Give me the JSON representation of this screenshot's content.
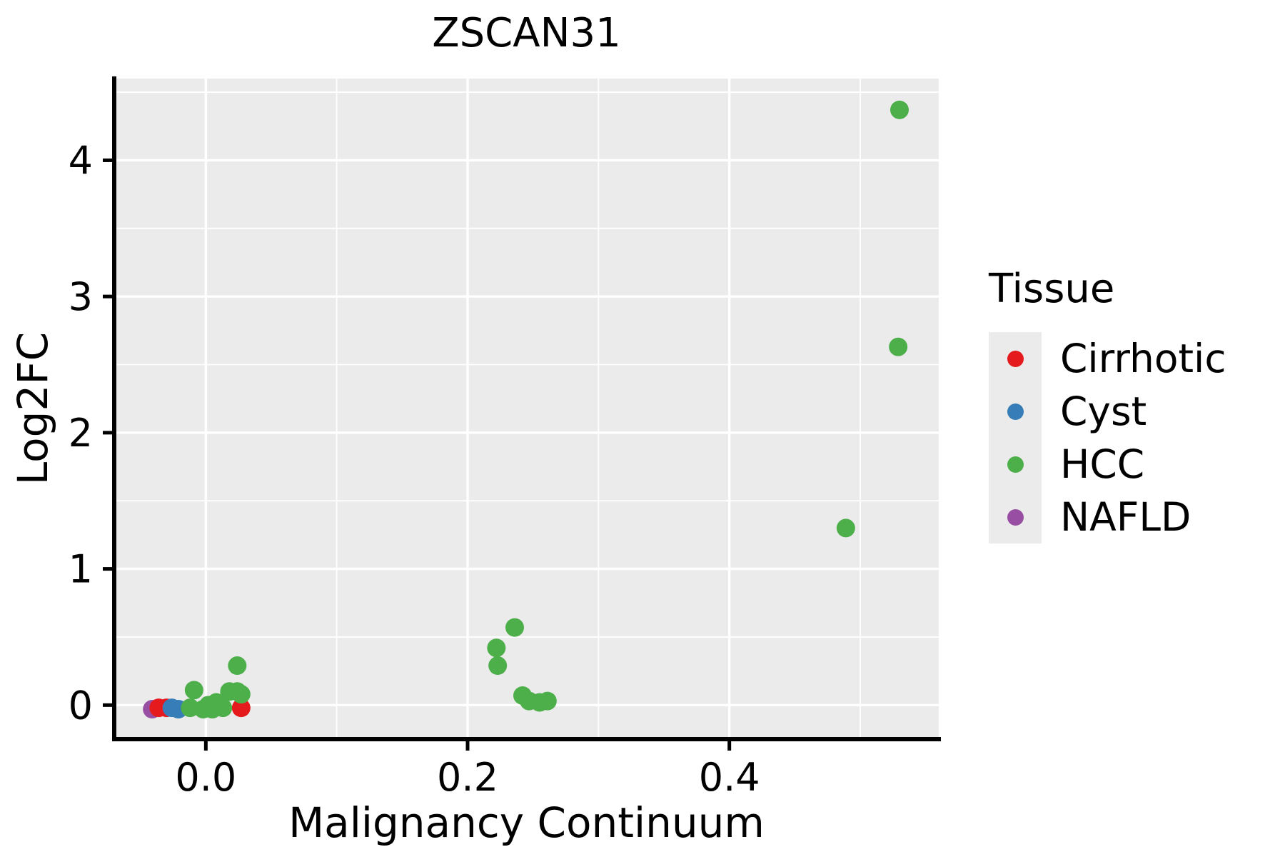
{
  "chart_data": {
    "type": "scatter",
    "title": "ZSCAN31",
    "xlabel": "Malignancy Continuum",
    "ylabel": "Log2FC",
    "xlim": [
      -0.07,
      0.56
    ],
    "ylim": [
      -0.25,
      4.6
    ],
    "xticks": [
      0.0,
      0.2,
      0.4
    ],
    "xtick_labels": [
      "0.0",
      "0.2",
      "0.4"
    ],
    "yticks": [
      0,
      1,
      2,
      3,
      4
    ],
    "ytick_labels": [
      "0",
      "1",
      "2",
      "3",
      "4"
    ],
    "x_minor_ticks": [
      0.1,
      0.3,
      0.5
    ],
    "y_minor_ticks": [
      0.5,
      1.5,
      2.5,
      3.5,
      4.5
    ],
    "grid": true,
    "panel_bg": "#ebebeb",
    "grid_color": "#ffffff",
    "axis_color": "#000000",
    "point_radius": 13,
    "draw_order": [
      3,
      0,
      1,
      2
    ],
    "legend": {
      "title": "Tissue",
      "position": "right",
      "key_bg": "#ebebeb"
    },
    "series": [
      {
        "name": "Cirrhotic",
        "color": "#e41a1c",
        "points": [
          [
            -0.036,
            -0.02
          ],
          [
            -0.03,
            -0.02
          ],
          [
            0.027,
            -0.02
          ]
        ]
      },
      {
        "name": "Cyst",
        "color": "#377eb8",
        "points": [
          [
            -0.026,
            -0.02
          ],
          [
            -0.021,
            -0.03
          ]
        ]
      },
      {
        "name": "HCC",
        "color": "#4daf4a",
        "points": [
          [
            0.53,
            4.37
          ],
          [
            0.529,
            2.63
          ],
          [
            0.489,
            1.3
          ],
          [
            0.236,
            0.57
          ],
          [
            0.222,
            0.42
          ],
          [
            0.223,
            0.29
          ],
          [
            0.242,
            0.07
          ],
          [
            0.247,
            0.03
          ],
          [
            0.255,
            0.02
          ],
          [
            0.261,
            0.03
          ],
          [
            0.024,
            0.29
          ],
          [
            -0.009,
            0.11
          ],
          [
            0.018,
            0.1
          ],
          [
            0.024,
            0.1
          ],
          [
            0.027,
            0.08
          ],
          [
            0.008,
            0.02
          ],
          [
            0.002,
            0.0
          ],
          [
            -0.012,
            -0.02
          ],
          [
            0.005,
            -0.03
          ],
          [
            0.013,
            -0.02
          ],
          [
            -0.002,
            -0.03
          ]
        ]
      },
      {
        "name": "NAFLD",
        "color": "#984ea3",
        "points": [
          [
            -0.041,
            -0.03
          ]
        ]
      }
    ]
  }
}
